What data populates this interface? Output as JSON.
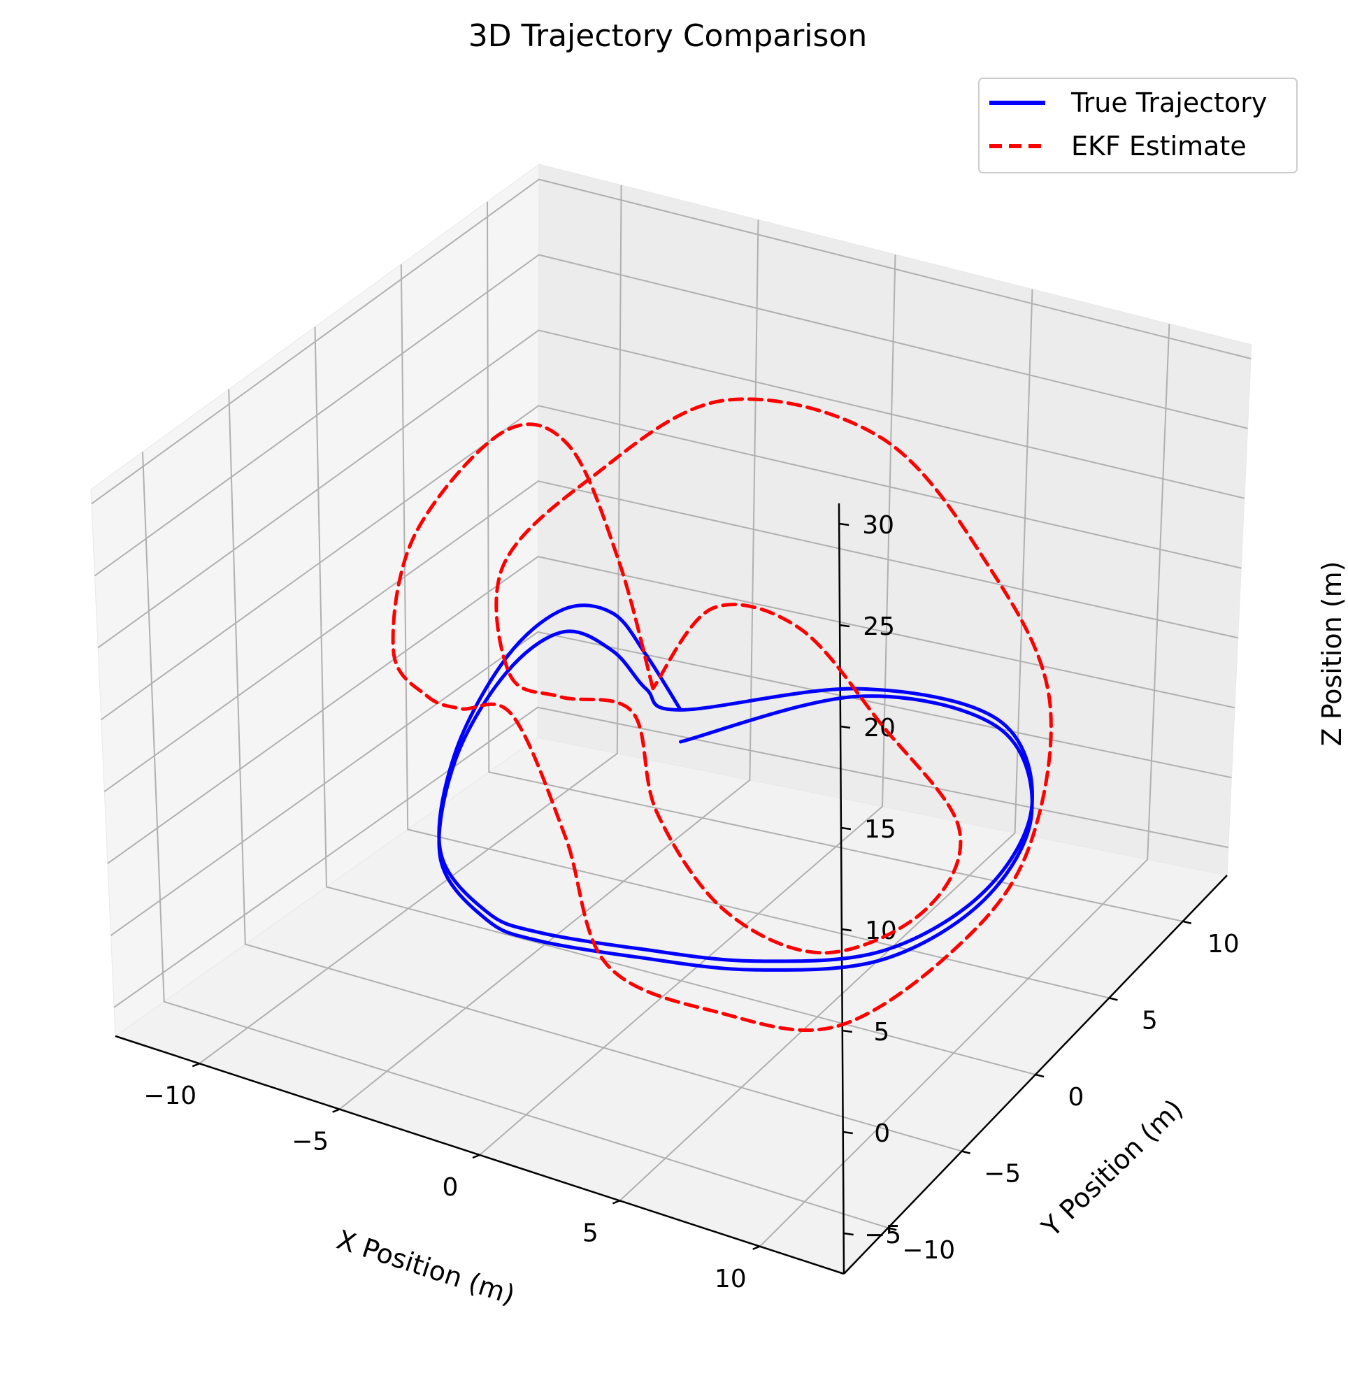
{
  "chart_data": {
    "type": "line",
    "projection": "3d",
    "title": "3D Trajectory Comparison",
    "xlabel": "X Position (m)",
    "ylabel": "Y Position (m)",
    "zlabel": "Z Position (m)",
    "xlim": [
      -13,
      13
    ],
    "ylim": [
      -13,
      13
    ],
    "zlim": [
      -7,
      31
    ],
    "xticks": [
      -10,
      -5,
      0,
      5,
      10
    ],
    "xtick_labels": [
      "−10",
      "−5",
      "0",
      "5",
      "10"
    ],
    "yticks": [
      -10,
      -5,
      0,
      5,
      10
    ],
    "ytick_labels": [
      "−10",
      "−5",
      "0",
      "5",
      "10"
    ],
    "zticks": [
      -5,
      0,
      5,
      10,
      15,
      20,
      25,
      30
    ],
    "ztick_labels": [
      "−5",
      "0",
      "5",
      "10",
      "15",
      "20",
      "25",
      "30"
    ],
    "grid": true,
    "legend_position": "top-right",
    "series": [
      {
        "name": "True Trajectory",
        "color": "#0000ff",
        "style": "solid",
        "points": [
          [
            0,
            0,
            10
          ],
          [
            -3,
            3,
            10.2
          ],
          [
            -6,
            6,
            9.5
          ],
          [
            -9,
            8,
            7
          ],
          [
            -10.5,
            7,
            4
          ],
          [
            -10,
            3,
            1
          ],
          [
            -7,
            -3,
            0.5
          ],
          [
            -3,
            -7,
            1.5
          ],
          [
            0,
            -9,
            3
          ],
          [
            3,
            -8,
            2.5
          ],
          [
            6,
            -6,
            1.5
          ],
          [
            9,
            -3,
            1
          ],
          [
            10.5,
            1,
            2
          ],
          [
            10,
            5,
            4
          ],
          [
            7,
            8,
            6
          ],
          [
            3,
            6,
            8
          ],
          [
            0,
            0,
            10
          ],
          [
            -3,
            3,
            8
          ],
          [
            -6,
            6,
            7
          ],
          [
            -9,
            8,
            5.5
          ],
          [
            -10.5,
            7,
            3
          ],
          [
            -10,
            3,
            0.5
          ],
          [
            -7,
            -3,
            0
          ],
          [
            -3,
            -7,
            1
          ],
          [
            0,
            -9,
            2.5
          ],
          [
            3,
            -8,
            2
          ],
          [
            6,
            -6,
            1
          ],
          [
            9,
            -3,
            0.5
          ],
          [
            10.5,
            1,
            1.5
          ],
          [
            10,
            5,
            3.5
          ],
          [
            7,
            8,
            5.5
          ],
          [
            3,
            6,
            7.5
          ],
          [
            0,
            0,
            8
          ]
        ]
      },
      {
        "name": "EKF Estimate",
        "color": "#ff0000",
        "style": "dashed",
        "points": [
          [
            -1,
            0,
            11
          ],
          [
            -4,
            3,
            16
          ],
          [
            -7,
            5,
            21
          ],
          [
            -10,
            6,
            20
          ],
          [
            -12,
            4,
            14
          ],
          [
            -11,
            1,
            9
          ],
          [
            -8,
            -2,
            9.5
          ],
          [
            -5,
            -5,
            12
          ],
          [
            -2,
            -7,
            14
          ],
          [
            1,
            -9,
            9
          ],
          [
            3,
            -10,
            3
          ],
          [
            6,
            -8,
            0
          ],
          [
            9,
            -6,
            -1
          ],
          [
            11,
            -2,
            1
          ],
          [
            11.5,
            2,
            4
          ],
          [
            10,
            6,
            10
          ],
          [
            6,
            9,
            15
          ],
          [
            2,
            9,
            22
          ],
          [
            -2,
            6,
            25
          ],
          [
            -5,
            3,
            21
          ],
          [
            -7,
            1,
            16
          ],
          [
            -5,
            -2,
            12
          ],
          [
            -2,
            -4,
            13
          ],
          [
            0,
            -3,
            12
          ],
          [
            2,
            -5,
            8
          ],
          [
            5,
            -6,
            4
          ],
          [
            8,
            -5,
            2
          ],
          [
            10,
            -2,
            3
          ],
          [
            9,
            2,
            4.5
          ],
          [
            5,
            4,
            8
          ],
          [
            2,
            4,
            13
          ],
          [
            0,
            2,
            15
          ],
          [
            -1,
            0,
            11
          ]
        ]
      }
    ]
  }
}
